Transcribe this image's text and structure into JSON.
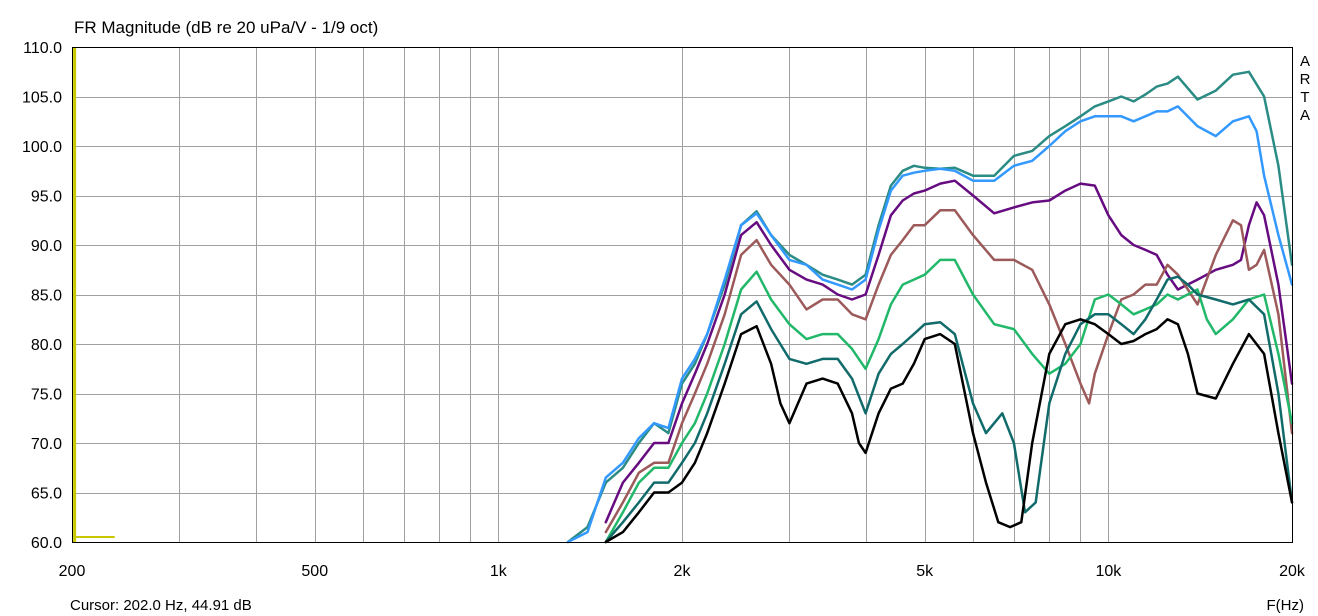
{
  "title": "FR Magnitude (dB re 20 uPa/V - 1/9 oct)",
  "cursor_text": "Cursor: 202.0 Hz, 44.91 dB",
  "x_unit_label": "F(Hz)",
  "watermark_letters": [
    "A",
    "R",
    "T",
    "A"
  ],
  "colors": {
    "grid": "#a0a0a0",
    "frame": "#000000",
    "cursor_marker": "#c8c800"
  },
  "chart_data": {
    "type": "line",
    "title": "FR Magnitude (dB re 20 uPa/V - 1/9 oct)",
    "xlabel": "F(Hz)",
    "ylabel": "",
    "x_scale": "log",
    "xlim": [
      200,
      20000
    ],
    "ylim": [
      60,
      110
    ],
    "grid": true,
    "x_ticks": [
      {
        "value": 200,
        "label": "200"
      },
      {
        "value": 500,
        "label": "500"
      },
      {
        "value": 1000,
        "label": "1k"
      },
      {
        "value": 2000,
        "label": "2k"
      },
      {
        "value": 5000,
        "label": "5k"
      },
      {
        "value": 10000,
        "label": "10k"
      },
      {
        "value": 20000,
        "label": "20k"
      }
    ],
    "y_ticks": [
      {
        "value": 60,
        "label": "60.0"
      },
      {
        "value": 65,
        "label": "65.0"
      },
      {
        "value": 70,
        "label": "70.0"
      },
      {
        "value": 75,
        "label": "75.0"
      },
      {
        "value": 80,
        "label": "80.0"
      },
      {
        "value": 85,
        "label": "85.0"
      },
      {
        "value": 90,
        "label": "90.0"
      },
      {
        "value": 95,
        "label": "95.0"
      },
      {
        "value": 100,
        "label": "100.0"
      },
      {
        "value": 105,
        "label": "105.0"
      },
      {
        "value": 110,
        "label": "110.0"
      }
    ],
    "series": [
      {
        "color": "#2a8c84",
        "x": [
          1300,
          1400,
          1500,
          1600,
          1700,
          1800,
          1900,
          2000,
          2100,
          2200,
          2350,
          2500,
          2650,
          2800,
          3000,
          3200,
          3400,
          3600,
          3800,
          4000,
          4200,
          4400,
          4600,
          4800,
          5000,
          5300,
          5600,
          6000,
          6500,
          7000,
          7500,
          8000,
          8500,
          9000,
          9500,
          10000,
          10500,
          11000,
          11500,
          12000,
          12500,
          13000,
          14000,
          15000,
          16000,
          17000,
          18000,
          19000,
          20000
        ],
        "y": [
          60,
          61.5,
          66,
          67.5,
          70,
          72,
          71,
          76,
          78,
          81,
          86,
          92,
          93.4,
          91,
          89,
          88,
          87,
          86.5,
          86,
          87,
          92,
          96,
          97.5,
          98,
          97.8,
          97.7,
          97.8,
          97,
          97,
          99,
          99.5,
          101,
          102,
          103,
          104,
          104.5,
          105,
          104.5,
          105.2,
          106,
          106.3,
          107,
          104.7,
          105.6,
          107.2,
          107.5,
          105,
          98,
          88
        ]
      },
      {
        "color": "#3399ff",
        "x": [
          1300,
          1400,
          1500,
          1600,
          1700,
          1800,
          1900,
          2000,
          2100,
          2200,
          2350,
          2500,
          2650,
          2800,
          3000,
          3200,
          3400,
          3600,
          3800,
          4000,
          4200,
          4400,
          4600,
          4800,
          5000,
          5300,
          5600,
          6000,
          6500,
          7000,
          7500,
          8000,
          8500,
          9000,
          9500,
          10000,
          10500,
          11000,
          11500,
          12000,
          12500,
          13000,
          14000,
          15000,
          16000,
          17000,
          17500,
          18000,
          19000,
          20000
        ],
        "y": [
          60,
          61,
          66.5,
          68,
          70.5,
          72,
          71.5,
          76.5,
          78.5,
          81,
          86.5,
          92,
          93.2,
          91,
          88.5,
          88,
          86.5,
          86,
          85.5,
          86.5,
          91.5,
          95.5,
          97,
          97.3,
          97.5,
          97.7,
          97.5,
          96.5,
          96.5,
          98,
          98.5,
          100,
          101.5,
          102.5,
          103,
          103,
          103,
          102.5,
          103,
          103.5,
          103.5,
          104,
          102,
          101,
          102.5,
          103,
          101.5,
          97,
          91,
          86
        ]
      },
      {
        "color": "#660c80",
        "x": [
          1500,
          1600,
          1700,
          1800,
          1900,
          2000,
          2100,
          2200,
          2350,
          2500,
          2650,
          2800,
          3000,
          3200,
          3400,
          3600,
          3800,
          4000,
          4200,
          4400,
          4600,
          4800,
          5000,
          5300,
          5600,
          6000,
          6500,
          7000,
          7500,
          8000,
          8500,
          9000,
          9500,
          10000,
          10500,
          11000,
          11500,
          12000,
          12500,
          13000,
          14000,
          15000,
          16000,
          16500,
          17000,
          17500,
          18000,
          19000,
          20000
        ],
        "y": [
          62,
          66,
          68,
          70,
          70,
          74,
          77,
          80,
          85,
          91,
          92.3,
          90,
          87.5,
          86.5,
          86,
          85,
          84.5,
          85,
          89,
          93,
          94.5,
          95.2,
          95.5,
          96.2,
          96.5,
          95,
          93.2,
          93.8,
          94.3,
          94.5,
          95.5,
          96.2,
          96,
          93,
          91,
          90,
          89.5,
          89,
          87,
          85.5,
          86.5,
          87.5,
          88,
          88.5,
          92,
          94.3,
          93,
          86,
          76
        ]
      },
      {
        "color": "#9c5a5a",
        "x": [
          1500,
          1600,
          1700,
          1800,
          1900,
          2000,
          2100,
          2200,
          2350,
          2500,
          2650,
          2800,
          3000,
          3200,
          3400,
          3600,
          3800,
          4000,
          4200,
          4400,
          4600,
          4800,
          5000,
          5300,
          5600,
          6000,
          6500,
          7000,
          7500,
          8000,
          8500,
          9000,
          9300,
          9500,
          10000,
          10500,
          11000,
          11500,
          12000,
          12500,
          13000,
          13500,
          14000,
          15000,
          16000,
          16500,
          17000,
          17500,
          18000,
          19000,
          20000
        ],
        "y": [
          61,
          64,
          67,
          68,
          68,
          72,
          75,
          78,
          83,
          89,
          90.5,
          88,
          86,
          83.5,
          84.5,
          84.5,
          83,
          82.5,
          86,
          89,
          90.5,
          92,
          92,
          93.5,
          93.5,
          91,
          88.5,
          88.5,
          87.5,
          84,
          80,
          76,
          74,
          77,
          81,
          84.5,
          85,
          86,
          86,
          88,
          87,
          85.5,
          84,
          89,
          92.5,
          92,
          87.5,
          88,
          89.5,
          83,
          71
        ]
      },
      {
        "color": "#22b86a",
        "x": [
          1500,
          1600,
          1700,
          1800,
          1900,
          2000,
          2100,
          2200,
          2350,
          2500,
          2650,
          2800,
          3000,
          3200,
          3400,
          3600,
          3800,
          4000,
          4200,
          4400,
          4600,
          4800,
          5000,
          5300,
          5600,
          6000,
          6500,
          7000,
          7500,
          8000,
          8500,
          9000,
          9500,
          10000,
          10500,
          11000,
          11500,
          12000,
          12500,
          13000,
          14000,
          14500,
          15000,
          16000,
          17000,
          18000,
          19000,
          20000
        ],
        "y": [
          60,
          63,
          66,
          67.5,
          67.5,
          70,
          72,
          75,
          80,
          85.5,
          87.3,
          84.5,
          82,
          80.5,
          81,
          81,
          79.5,
          77.5,
          80.5,
          84,
          86,
          86.5,
          87,
          88.5,
          88.5,
          85,
          82,
          81.5,
          79,
          77,
          78,
          80,
          84.5,
          85,
          84,
          83,
          83.5,
          84,
          85,
          84.5,
          85.5,
          82.5,
          81,
          82.5,
          84.5,
          85,
          79,
          72
        ]
      },
      {
        "color": "#126b6b",
        "x": [
          1500,
          1600,
          1700,
          1800,
          1900,
          2000,
          2100,
          2200,
          2350,
          2500,
          2650,
          2800,
          3000,
          3200,
          3400,
          3600,
          3800,
          4000,
          4200,
          4400,
          4600,
          4800,
          5000,
          5300,
          5600,
          6000,
          6300,
          6700,
          7000,
          7300,
          7600,
          8000,
          8500,
          9000,
          9500,
          10000,
          10500,
          11000,
          11500,
          12000,
          12500,
          13000,
          13500,
          14000,
          15000,
          16000,
          17000,
          18000,
          19000,
          20000
        ],
        "y": [
          60,
          62,
          64,
          66,
          66,
          68,
          70,
          73,
          78,
          83,
          84.3,
          81.5,
          78.5,
          78,
          78.5,
          78.5,
          76.5,
          73,
          77,
          79,
          80,
          81,
          82,
          82.2,
          81,
          74,
          71,
          73,
          70,
          63,
          64,
          74,
          79,
          82,
          83,
          83,
          82,
          81,
          82.5,
          84.5,
          86.5,
          86.8,
          86,
          85,
          84.5,
          84,
          84.5,
          83,
          75,
          64
        ]
      },
      {
        "color": "#000000",
        "x": [
          1500,
          1600,
          1700,
          1800,
          1900,
          2000,
          2100,
          2200,
          2350,
          2500,
          2650,
          2800,
          2900,
          3000,
          3200,
          3400,
          3600,
          3800,
          3900,
          4000,
          4200,
          4400,
          4600,
          4800,
          5000,
          5300,
          5600,
          6000,
          6300,
          6600,
          6900,
          7200,
          7500,
          8000,
          8500,
          9000,
          9500,
          10000,
          10500,
          11000,
          11500,
          12000,
          12500,
          13000,
          13500,
          14000,
          15000,
          16000,
          17000,
          18000,
          19000,
          20000
        ],
        "y": [
          60,
          61,
          63,
          65,
          65,
          66,
          68,
          71,
          76,
          81,
          81.8,
          78,
          74,
          72,
          76,
          76.5,
          76,
          73,
          70,
          69,
          73,
          75.5,
          76,
          78,
          80.5,
          81,
          80,
          71,
          66,
          62,
          61.5,
          62,
          70,
          79,
          82,
          82.5,
          82,
          81,
          80,
          80.3,
          81,
          81.5,
          82.5,
          82,
          79,
          75,
          74.5,
          78,
          81,
          79,
          71,
          64
        ]
      }
    ],
    "cursor": {
      "frequency_hz": 202.0,
      "level_db": 44.91
    }
  }
}
